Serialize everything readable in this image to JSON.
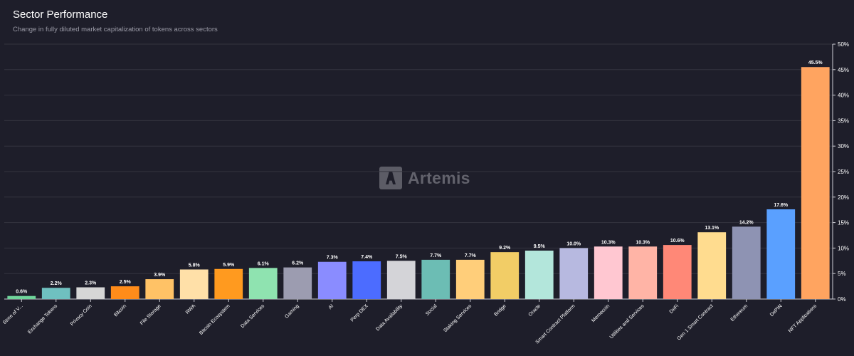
{
  "header": {
    "title": "Sector Performance",
    "subtitle": "Change in fully diluted market capitalization of tokens across sectors"
  },
  "watermark": {
    "text": "Artemis",
    "icon": "artemis-logo-icon"
  },
  "chart_data": {
    "type": "bar",
    "title": "Sector Performance",
    "subtitle": "Change in fully diluted market capitalization of tokens across sectors",
    "xlabel": "",
    "ylabel": "",
    "ylim": [
      0,
      50
    ],
    "yticks": [
      "0%",
      "5%",
      "10%",
      "15%",
      "20%",
      "25%",
      "30%",
      "35%",
      "40%",
      "45%",
      "50%"
    ],
    "grid": true,
    "yaxis_position": "right",
    "categories": [
      "Store of V...",
      "Exchange Tokens",
      "Privacy Coin",
      "Bitcoin",
      "File Storage",
      "RWA",
      "Bitcoin Ecosystem",
      "Data Services",
      "Gaming",
      "AI",
      "Perp DEX",
      "Data Availability",
      "Social",
      "Staking Services",
      "Bridge",
      "Oracle",
      "Smart Contract Platform",
      "Memecoin",
      "Utilities and Services",
      "DeFi",
      "Gen 1 Smart Contract",
      "Ethereum",
      "DePIN",
      "NFT Applications"
    ],
    "values": [
      0.6,
      2.2,
      2.3,
      2.5,
      3.9,
      5.8,
      5.9,
      6.1,
      6.2,
      7.3,
      7.4,
      7.5,
      7.7,
      7.7,
      9.2,
      9.5,
      10.0,
      10.3,
      10.3,
      10.6,
      13.1,
      14.2,
      17.6,
      45.5
    ],
    "labels": [
      "0.6%",
      "2.2%",
      "2.3%",
      "2.5%",
      "3.9%",
      "5.8%",
      "5.9%",
      "6.1%",
      "6.2%",
      "7.3%",
      "7.4%",
      "7.5%",
      "7.7%",
      "7.7%",
      "9.2%",
      "9.5%",
      "10.0%",
      "10.3%",
      "10.3%",
      "10.6%",
      "13.1%",
      "14.2%",
      "17.6%",
      "45.5%"
    ],
    "colors": [
      "#6fd49a",
      "#6fc0c0",
      "#d6d6d6",
      "#ff8c1a",
      "#ffc266",
      "#ffe0a8",
      "#ff9a1f",
      "#8fe3b0",
      "#9c9cb0",
      "#8a8cff",
      "#4c6cff",
      "#d4d4d8",
      "#6cbdb4",
      "#ffce7a",
      "#f2cd66",
      "#b3e6db",
      "#b7b9e0",
      "#ffc7d1",
      "#ffb4a6",
      "#ff8877",
      "#ffdc8f",
      "#8e93b3",
      "#5aa0ff",
      "#ffa460"
    ]
  }
}
